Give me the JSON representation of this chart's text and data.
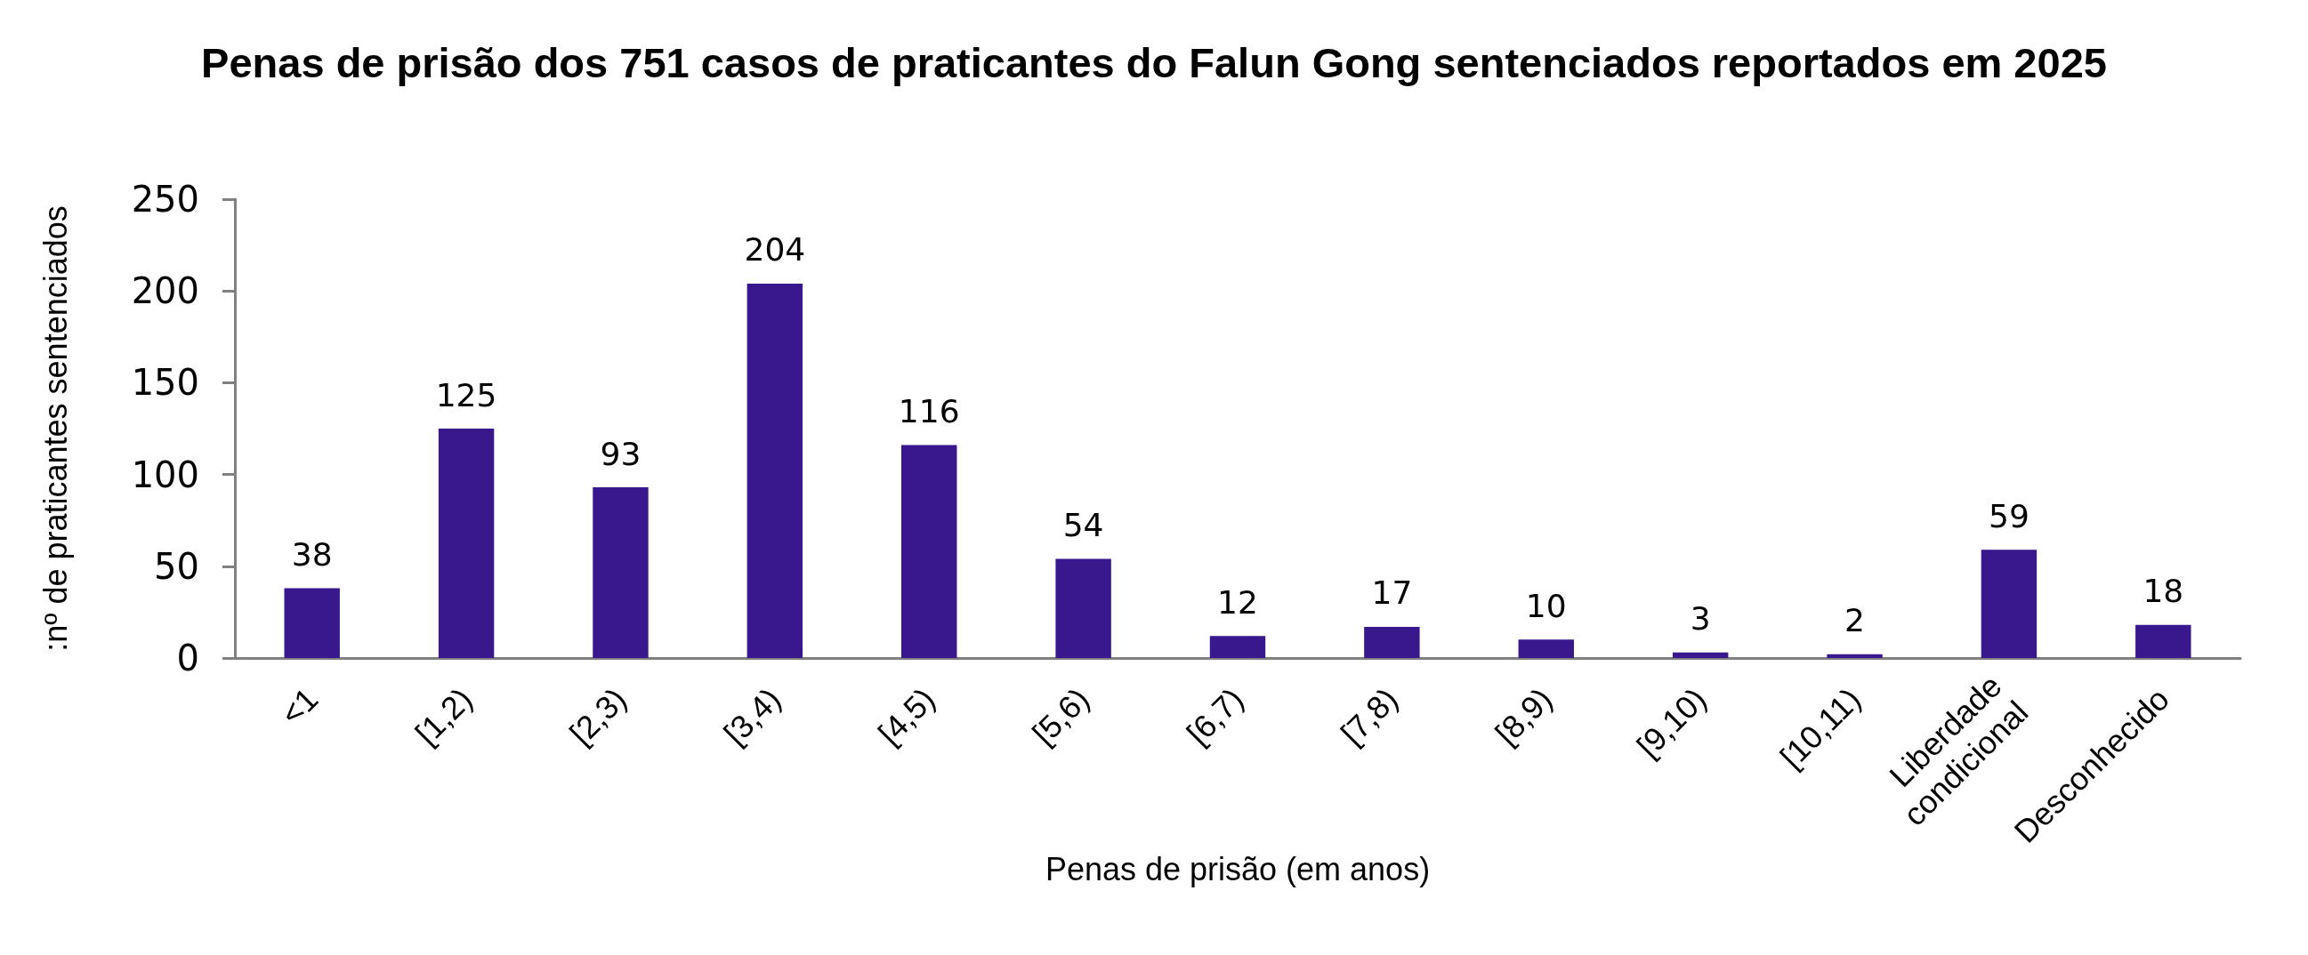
{
  "chart_data": {
    "type": "bar",
    "title": "Penas de prisão dos 751 casos de praticantes do Falun Gong sentenciados reportados em 2025",
    "xlabel": "Penas de prisão (em anos)",
    "ylabel": ":nº de praticantes sentenciados",
    "categories": [
      "<1",
      "[1,2)",
      "[2,3)",
      "[3,4)",
      "[4,5)",
      "[5,6)",
      "[6,7)",
      "[7,8)",
      "[8,9)",
      "[9,10)",
      "[10,11)",
      "Liberdade condicional",
      "Desconhecido"
    ],
    "values": [
      38,
      125,
      93,
      204,
      116,
      54,
      12,
      17,
      10,
      3,
      2,
      59,
      18
    ],
    "color": "#38188c",
    "ylim": [
      0,
      250
    ],
    "yticks": [
      0,
      50,
      100,
      150,
      200,
      250
    ],
    "data_labels": true
  }
}
